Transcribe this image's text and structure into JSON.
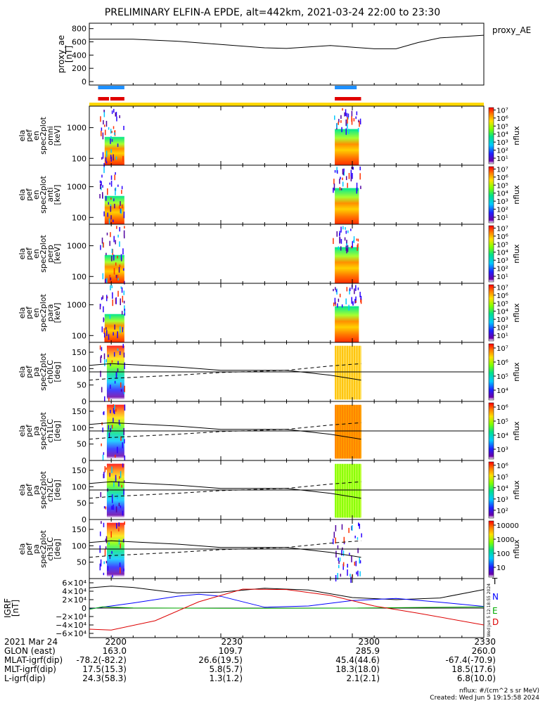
{
  "title": "PRELIMINARY ELFIN-A EPDE, alt=442km, 2021-03-24 22:00 to 23:30",
  "proxy_ae": {
    "ylabel": "proxy_ae\n[nT]",
    "legend": "proxy_AE",
    "yticks": [
      "800",
      "600",
      "400",
      "200",
      "0"
    ],
    "ylim": [
      0,
      850
    ]
  },
  "spectra_panels": [
    {
      "ylabel": [
        "ela",
        "pef",
        "en",
        "spec2plot",
        "omni",
        "[keV]"
      ],
      "yticks": [
        "1000",
        "100"
      ],
      "cbar_ticks": [
        "10⁷",
        "10⁶",
        "10⁵",
        "10⁴",
        "10³",
        "10²",
        "10¹"
      ],
      "cbar_label": "nflux"
    },
    {
      "ylabel": [
        "ela",
        "pef",
        "en",
        "spec2plot",
        "anti",
        "[keV]"
      ],
      "yticks": [
        "1000",
        "100"
      ],
      "cbar_ticks": [
        "10⁷",
        "10⁶",
        "10⁵",
        "10⁴",
        "10³",
        "10²",
        "10¹"
      ],
      "cbar_label": "nflux"
    },
    {
      "ylabel": [
        "ela",
        "pef",
        "en",
        "spec2plot",
        "perp",
        "[keV]"
      ],
      "yticks": [
        "1000",
        "100"
      ],
      "cbar_ticks": [
        "10⁷",
        "10⁶",
        "10⁵",
        "10⁴",
        "10³",
        "10²",
        "10¹"
      ],
      "cbar_label": "nflux"
    },
    {
      "ylabel": [
        "ela",
        "pef",
        "en",
        "spec2plot",
        "para",
        "[keV]"
      ],
      "yticks": [
        "1000",
        "100"
      ],
      "cbar_ticks": [
        "10⁷",
        "10⁶",
        "10⁵",
        "10⁴",
        "10³",
        "10²",
        "10¹"
      ],
      "cbar_label": "nflux"
    }
  ],
  "pa_panels": [
    {
      "ylabel": [
        "ela",
        "pef",
        "pa",
        "spec2plot",
        "ch0LC",
        "[deg]"
      ],
      "yticks": [
        "150",
        "100",
        "50",
        "0"
      ],
      "cbar_ticks": [
        "10⁷",
        "10⁶",
        "10⁵",
        "10⁴"
      ],
      "cbar_label": "nflux"
    },
    {
      "ylabel": [
        "ela",
        "pef",
        "pa",
        "spec2plot",
        "ch1LC",
        "[deg]"
      ],
      "yticks": [
        "150",
        "100",
        "50",
        "0"
      ],
      "cbar_ticks": [
        "10⁶",
        "10⁵",
        "10⁴",
        "10³"
      ],
      "cbar_label": "nflux"
    },
    {
      "ylabel": [
        "ela",
        "pef",
        "pa",
        "spec2plot",
        "ch2LC",
        "[deg]"
      ],
      "yticks": [
        "150",
        "100",
        "50",
        "0"
      ],
      "cbar_ticks": [
        "10⁶",
        "10⁵",
        "10⁴",
        "10³",
        "10²"
      ],
      "cbar_label": "nflux"
    },
    {
      "ylabel": [
        "ela",
        "pef",
        "pa",
        "spec2plot",
        "ch3LC",
        "[deg]"
      ],
      "yticks": [
        "150",
        "100",
        "50"
      ],
      "cbar_ticks": [
        "10000",
        "1000",
        "100",
        "10"
      ],
      "cbar_label": "nflux"
    }
  ],
  "igrf": {
    "ylabel": "IGRF\n[nT]",
    "yticks": [
      "6×10⁴",
      "4×10⁴",
      "2×10⁴",
      "0",
      "−2×10⁴",
      "−4×10⁴",
      "−6×10⁴"
    ],
    "legend": [
      {
        "name": "T",
        "color": "#000000"
      },
      {
        "name": "N",
        "color": "#0000ff"
      },
      {
        "name": "E",
        "color": "#00aa00"
      },
      {
        "name": "D",
        "color": "#dd0000"
      }
    ],
    "side_text": "Wed Jun  5 12:18:55 2024"
  },
  "footer": {
    "rows": [
      [
        "2021 Mar 24",
        "2200",
        "2230",
        "2300",
        "2330"
      ],
      [
        "GLON (east)",
        "163.0",
        "109.7",
        "285.9",
        "260.0"
      ],
      [
        "MLAT-igrf(dip)",
        "-78.2(-82.2)",
        "26.6(19.5)",
        "45.4(44.6)",
        "-67.4(-70.9)"
      ],
      [
        "MLT-igrf(dip)",
        "17.5(15.3)",
        "5.8(5.7)",
        "18.3(18.0)",
        "18.5(17.6)"
      ],
      [
        "L-igrf(dip)",
        "24.3(58.3)",
        "1.3(1.2)",
        "2.1(2.1)",
        "6.8(10.0)"
      ]
    ],
    "note_units": "nflux: #/(cm^2 s sr MeV)",
    "note_created": "Created: Wed Jun  5 19:15:58 2024"
  },
  "chart_data": {
    "type": "line",
    "x_range_minutes": [
      0,
      90
    ],
    "x_tick_labels": [
      "2200",
      "2230",
      "2300",
      "2330"
    ],
    "proxy_ae": {
      "x": [
        0,
        10,
        20,
        30,
        40,
        45,
        55,
        60,
        65,
        70,
        75,
        80,
        90
      ],
      "y": [
        640,
        640,
        610,
        560,
        510,
        500,
        545,
        520,
        495,
        495,
        590,
        660,
        700
      ]
    },
    "sci_zones": [
      {
        "start": 2,
        "end": 8
      },
      {
        "start": 56,
        "end": 62
      }
    ],
    "blue_bars": [
      {
        "start": 2,
        "end": 8
      },
      {
        "start": 56,
        "end": 61
      }
    ],
    "red_bars": [
      {
        "start": 2,
        "end": 4.5
      },
      {
        "start": 4.8,
        "end": 8
      },
      {
        "start": 56,
        "end": 62
      }
    ],
    "pa_loss_cone_solid": {
      "x": [
        0,
        5,
        20,
        30,
        45,
        55,
        62
      ],
      "y": [
        110,
        115,
        105,
        95,
        95,
        80,
        65
      ]
    },
    "pa_loss_cone_dashed": {
      "x": [
        0,
        5,
        20,
        30,
        45,
        55,
        62
      ],
      "y": [
        65,
        70,
        80,
        88,
        95,
        108,
        115
      ]
    },
    "pa_ref_line": 90,
    "igrf": {
      "T": {
        "x": [
          0,
          5,
          10,
          20,
          30,
          40,
          50,
          60,
          70,
          80,
          90
        ],
        "y": [
          48000,
          52000,
          49000,
          36000,
          38000,
          47000,
          43000,
          25000,
          20000,
          24000,
          44000
        ]
      },
      "N": {
        "x": [
          0,
          10,
          20,
          25,
          30,
          40,
          50,
          60,
          70,
          80,
          90
        ],
        "y": [
          -2000,
          12000,
          28000,
          33000,
          28000,
          2000,
          5000,
          18000,
          23000,
          14000,
          4000
        ]
      },
      "E": {
        "x": [
          0,
          3,
          10,
          30,
          60,
          90
        ],
        "y": [
          -3000,
          3000,
          500,
          -500,
          0,
          3000
        ]
      },
      "D": {
        "x": [
          0,
          5,
          15,
          25,
          35,
          45,
          55,
          65,
          75,
          90
        ],
        "y": [
          -50000,
          -52000,
          -30000,
          15000,
          45000,
          44000,
          30000,
          5000,
          -12000,
          -40000
        ]
      }
    }
  }
}
